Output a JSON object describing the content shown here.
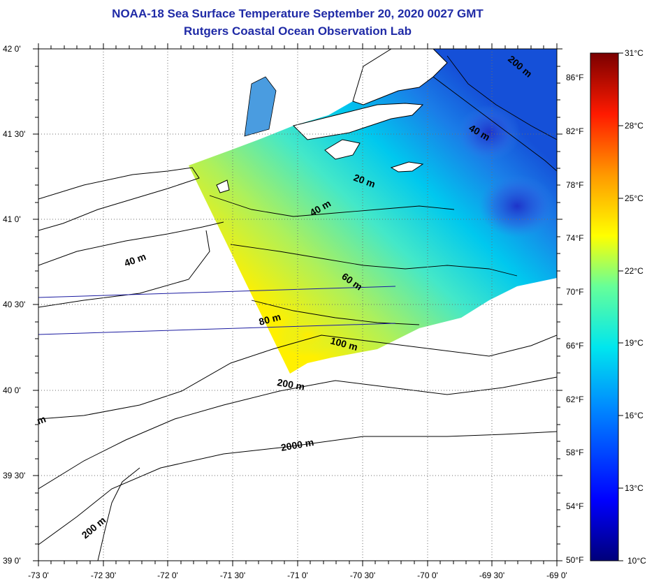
{
  "title": "NOAA-18 Sea Surface Temperature September 20, 2020 0027 GMT",
  "subtitle": "Rutgers Coastal Ocean Observation Lab",
  "lat_labels": [
    "42 0'",
    "41 30'",
    "41 0'",
    "40 30'",
    "40 0'",
    "39 30'",
    "39 0'"
  ],
  "lon_labels": [
    "-73 0'",
    "-72 30'",
    "-72 0'",
    "-71 30'",
    "-71 0'",
    "-70 30'",
    "-70 0'",
    "-69 30'",
    "-69 0'"
  ],
  "fahrenheit_labels": [
    "86°F",
    "82°F",
    "78°F",
    "74°F",
    "70°F",
    "66°F",
    "62°F",
    "58°F",
    "54°F",
    "50°F"
  ],
  "celsius_labels": [
    "31°C",
    "28°C",
    "25°C",
    "22°C",
    "19°C",
    "16°C",
    "13°C",
    "10°C"
  ],
  "contour_labels": [
    {
      "text": "20 m"
    },
    {
      "text": "40 m"
    },
    {
      "text": "40 m"
    },
    {
      "text": "40 m"
    },
    {
      "text": "60 m"
    },
    {
      "text": "80 m"
    },
    {
      "text": "100 m"
    },
    {
      "text": "200 m"
    },
    {
      "text": "200 m"
    },
    {
      "text": "200 m"
    },
    {
      "text": "2000 m"
    },
    {
      "text": "m"
    }
  ],
  "colors": {
    "title": "#1f2aa6",
    "land": "#ffffff",
    "ocean": "#ffffff",
    "contour": "#000000"
  }
}
